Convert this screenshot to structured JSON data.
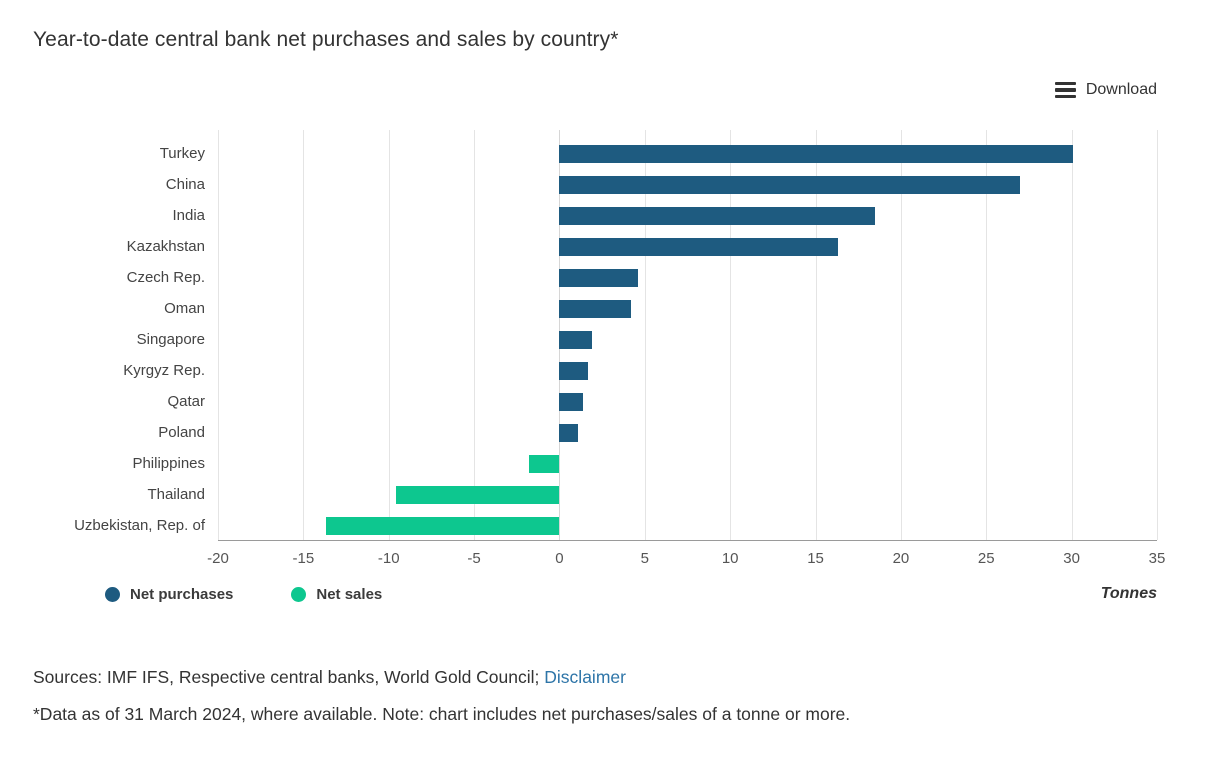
{
  "header": {
    "title": "Year-to-date central bank net purchases and sales by country*",
    "download_label": "Download"
  },
  "chart_data": {
    "type": "bar",
    "orientation": "horizontal",
    "title": "Year-to-date central bank net purchases and sales by country*",
    "categories": [
      "Turkey",
      "China",
      "India",
      "Kazakhstan",
      "Czech Rep.",
      "Oman",
      "Singapore",
      "Kyrgyz Rep.",
      "Qatar",
      "Poland",
      "Philippines",
      "Thailand",
      "Uzbekistan, Rep. of"
    ],
    "values": [
      30.1,
      27.0,
      18.5,
      16.3,
      4.6,
      4.2,
      1.9,
      1.7,
      1.4,
      1.1,
      -1.8,
      -9.6,
      -13.7
    ],
    "xlabel": "Tonnes",
    "xlim": [
      -20,
      35
    ],
    "xticks": [
      -20,
      -15,
      -10,
      -5,
      0,
      5,
      10,
      15,
      20,
      25,
      30,
      35
    ],
    "grid": "vertical",
    "series_colors": {
      "net_purchases": "#1e5b80",
      "net_sales": "#0dc78f"
    },
    "legend_position": "bottom-left",
    "legend": [
      {
        "label": "Net purchases",
        "color": "#1e5b80"
      },
      {
        "label": "Net sales",
        "color": "#0dc78f"
      }
    ],
    "unit_label": "Tonnes"
  },
  "footer": {
    "sources_prefix": "Sources: IMF IFS, Respective central banks, World Gold Council;",
    "disclaimer_label": "Disclaimer",
    "footnote": "*Data as of 31 March 2024, where available. Note: chart includes net purchases/sales of a tonne or more."
  }
}
